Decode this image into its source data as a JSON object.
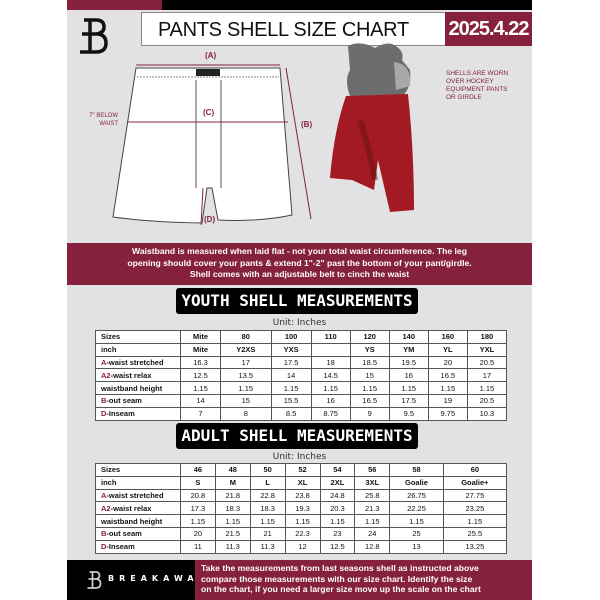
{
  "header": {
    "title": "PANTS SHELL SIZE CHART",
    "date": "2025.4.22"
  },
  "diagram": {
    "label_a": "(A)",
    "label_b": "(B)",
    "label_c": "(C)",
    "label_d": "(D)",
    "c_note": [
      "7\" BELOW",
      "WAIST"
    ],
    "worn_note": "SHELLS ARE WORN OVER HOCKEY EQUIPMENT PANTS OR GIRDLE"
  },
  "info_band": [
    "Waistband is measured when laid flat - not your total waist circumference. The leg",
    "opening should cover your pants & extend 1\"-2\" past the bottom of your pant/girdle.",
    "Shell comes with an adjustable belt to cinch the waist"
  ],
  "youth": {
    "title": "YOUTH SHELL MEASUREMENTS",
    "unit": "Unit: Inches",
    "rows": [
      {
        "pre": "",
        "label": "Sizes",
        "values": [
          "Mite",
          "80",
          "100",
          "110",
          "120",
          "140",
          "160",
          "180"
        ]
      },
      {
        "pre": "",
        "label": "inch",
        "values": [
          "Mite",
          "Y2XS",
          "YXS",
          "",
          "YS",
          "YM",
          "YL",
          "YXL"
        ]
      },
      {
        "pre": "A",
        "label": "-waist stretched",
        "values": [
          "16.3",
          "17",
          "17.5",
          "18",
          "18.5",
          "19.5",
          "20",
          "20.5"
        ]
      },
      {
        "pre": "A2",
        "label": "-waist relax",
        "values": [
          "12.5",
          "13.5",
          "14",
          "14.5",
          "15",
          "16",
          "16.5",
          "17"
        ]
      },
      {
        "pre": "",
        "label": "waistband height",
        "values": [
          "1.15",
          "1.15",
          "1.15",
          "1.15",
          "1.15",
          "1.15",
          "1.15",
          "1.15"
        ]
      },
      {
        "pre": "B",
        "label": "-out seam",
        "values": [
          "14",
          "15",
          "15.5",
          "16",
          "16.5",
          "17.5",
          "19",
          "20.5"
        ]
      },
      {
        "pre": "D",
        "label": "-Inseam",
        "values": [
          "7",
          "8",
          "8.5",
          "8.75",
          "9",
          "9.5",
          "9.75",
          "10.3"
        ]
      }
    ]
  },
  "adult": {
    "title": "ADULT SHELL MEASUREMENTS",
    "unit": "Unit: Inches",
    "rows": [
      {
        "pre": "",
        "label": "Sizes",
        "values": [
          "46",
          "48",
          "50",
          "52",
          "54",
          "56",
          "58",
          "60"
        ]
      },
      {
        "pre": "",
        "label": "inch",
        "values": [
          "S",
          "M",
          "L",
          "XL",
          "2XL",
          "3XL",
          "Goalie",
          "Goalie+"
        ]
      },
      {
        "pre": "A",
        "label": "-waist stretched",
        "values": [
          "20.8",
          "21.8",
          "22.8",
          "23.8",
          "24.8",
          "25.8",
          "26.75",
          "27.75"
        ]
      },
      {
        "pre": "A2",
        "label": "-waist relax",
        "values": [
          "17.3",
          "18.3",
          "18.3",
          "19.3",
          "20.3",
          "21.3",
          "22.25",
          "23.25"
        ]
      },
      {
        "pre": "",
        "label": "waistband height",
        "values": [
          "1.15",
          "1.15",
          "1.15",
          "1.15",
          "1.15",
          "1.15",
          "1.15",
          "1.15"
        ]
      },
      {
        "pre": "B",
        "label": "-out seam",
        "values": [
          "20",
          "21.5",
          "21",
          "22.3",
          "23",
          "24",
          "25",
          "25.5"
        ]
      },
      {
        "pre": "D",
        "label": "-Inseam",
        "values": [
          "11",
          "11.3",
          "11.3",
          "12",
          "12.5",
          "12.8",
          "13",
          "13.25"
        ]
      }
    ]
  },
  "footer": {
    "brand": "BREAKAWAY",
    "text": [
      "Take the measurements from last seasons shell as instructed above",
      "compare those measurements  with our size chart. Identify the size",
      "on the chart, if you need a larger size move up the scale on the chart"
    ]
  },
  "colors": {
    "maroon": "#85213d",
    "panel": "#e2e2e5"
  }
}
